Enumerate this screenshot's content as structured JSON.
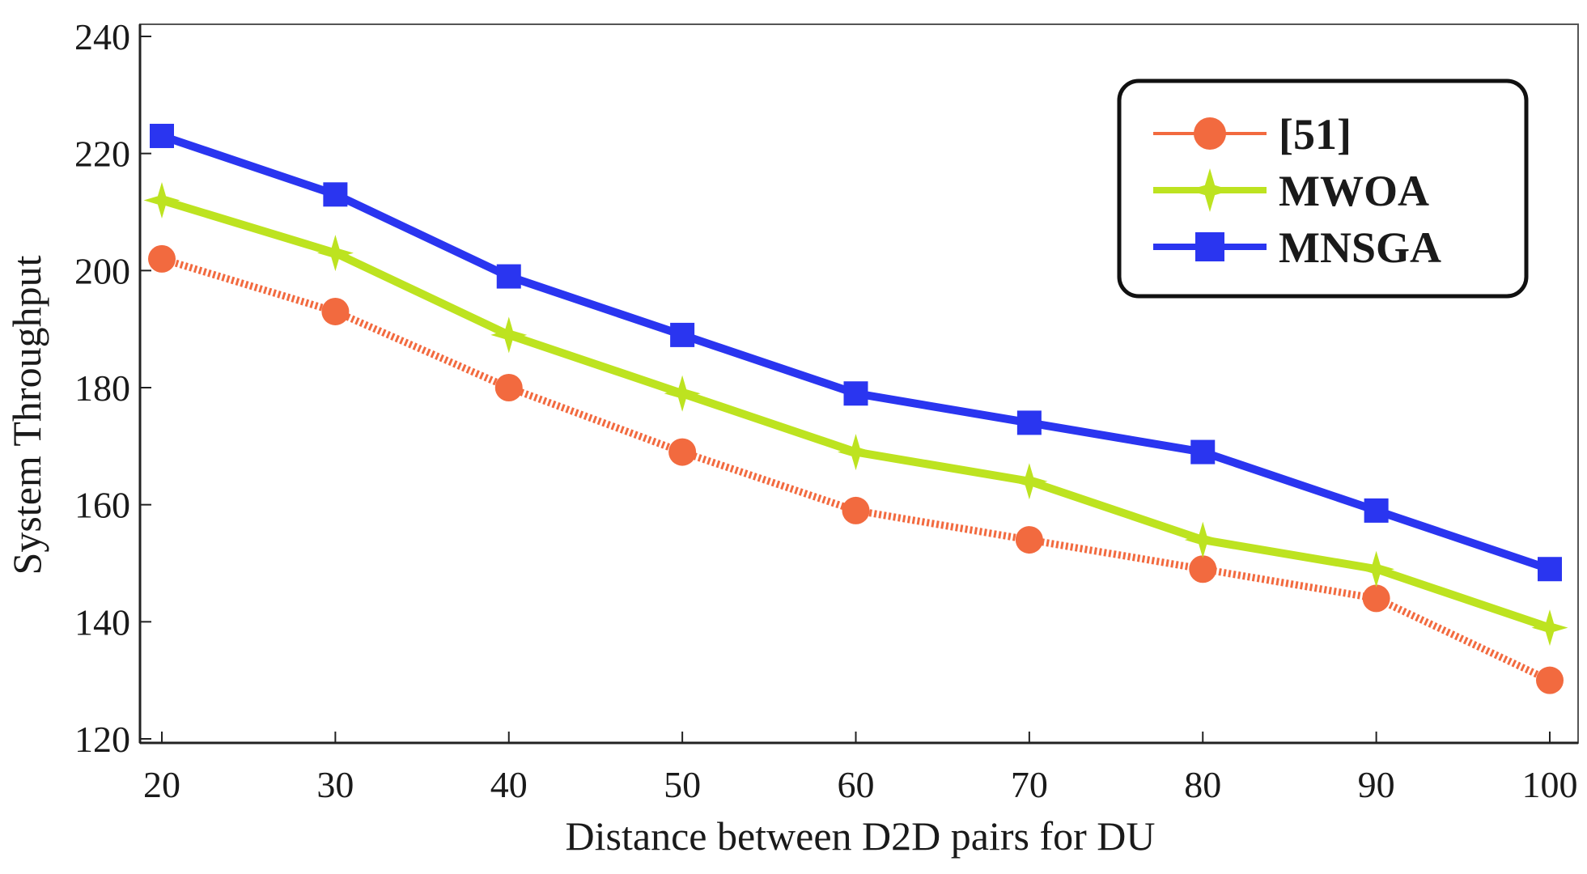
{
  "chart_data": {
    "type": "line",
    "title": "",
    "xlabel": "Distance between D2D pairs for DU",
    "ylabel": "System Throughput",
    "x": [
      20,
      30,
      40,
      50,
      60,
      70,
      80,
      90,
      100
    ],
    "xlim": [
      20,
      100
    ],
    "ylim": [
      120,
      240
    ],
    "xticks": [
      "20",
      "30",
      "40",
      "50",
      "60",
      "70",
      "80",
      "90",
      "100"
    ],
    "yticks": [
      "120",
      "140",
      "160",
      "180",
      "200",
      "220",
      "240"
    ],
    "grid": false,
    "legend_position": "top-right",
    "series": [
      {
        "name": "[51]",
        "color": "#f26a3f",
        "marker": "circle",
        "line": "dotted",
        "values": [
          202,
          193,
          180,
          169,
          159,
          154,
          149,
          144,
          130
        ]
      },
      {
        "name": "MWOA",
        "color": "#bde320",
        "marker": "star",
        "line": "solid",
        "values": [
          212,
          203,
          189,
          179,
          169,
          164,
          154,
          149,
          139
        ]
      },
      {
        "name": "MNSGA",
        "color": "#2a35f0",
        "marker": "square",
        "line": "solid",
        "values": [
          223,
          213,
          199,
          189,
          179,
          174,
          169,
          159,
          149
        ]
      }
    ]
  }
}
